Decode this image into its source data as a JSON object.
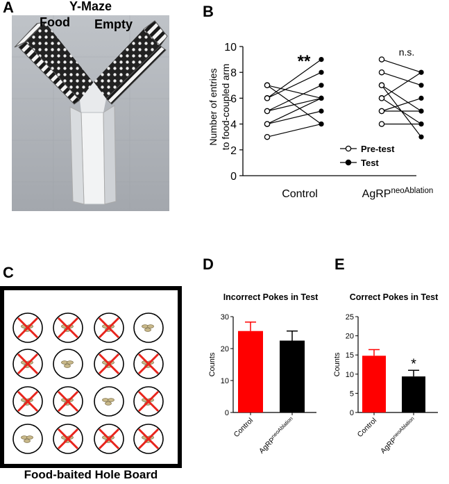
{
  "panels": {
    "A": {
      "letter": "A",
      "title": "Y-Maze",
      "arm_left": "Food",
      "arm_right": "Empty"
    },
    "B": {
      "letter": "B"
    },
    "C": {
      "letter": "C",
      "caption": "Food-baited Hole Board"
    },
    "D": {
      "letter": "D"
    },
    "E": {
      "letter": "E"
    }
  },
  "colors": {
    "control": "#ff0000",
    "agrp": "#000000",
    "cross": "#e8241c",
    "pellet": "#c9b98a"
  },
  "hole_board": {
    "rows": [
      [
        true,
        true,
        true,
        false
      ],
      [
        true,
        false,
        true,
        true
      ],
      [
        true,
        true,
        false,
        true
      ],
      [
        false,
        true,
        true,
        true
      ]
    ]
  },
  "chart_data": [
    {
      "panel": "B",
      "type": "scatter",
      "ylabel": "Number of entries to food-coupled arm",
      "ylim": [
        0,
        10
      ],
      "yticks": [
        0,
        2,
        4,
        6,
        8,
        10
      ],
      "groups": [
        {
          "label": "Control",
          "label_sup": "",
          "significance": "**",
          "pre": [
            3,
            4,
            4,
            5,
            5,
            6,
            6,
            7,
            7
          ],
          "test": [
            4,
            5,
            6,
            6,
            7,
            9,
            8,
            6,
            4
          ]
        },
        {
          "label": "AgRP",
          "label_sup": "neoAblation",
          "significance": "n.s.",
          "pre": [
            4,
            5,
            5,
            6,
            6,
            7,
            7,
            8,
            9
          ],
          "test": [
            4,
            6,
            5,
            8,
            4,
            5,
            3,
            7,
            8
          ]
        }
      ],
      "legend": [
        {
          "label": "Pre-test",
          "marker": "open-circle"
        },
        {
          "label": "Test",
          "marker": "filled-circle"
        }
      ],
      "legend_position": "bottom-right"
    },
    {
      "panel": "D",
      "type": "bar",
      "title": "Incorrect Pokes in Test",
      "ylabel": "Counts",
      "ylim": [
        0,
        30
      ],
      "yticks": [
        0,
        10,
        20,
        30
      ],
      "categories": [
        {
          "label": "Control",
          "sup": "",
          "value": 25.5,
          "error": 2.8,
          "color": "#ff0000"
        },
        {
          "label": "AgRP",
          "sup": "neoAblation",
          "value": 22.5,
          "error": 3.0,
          "color": "#000000"
        }
      ],
      "significance": [
        "",
        ""
      ]
    },
    {
      "panel": "E",
      "type": "bar",
      "title": "Correct Pokes in Test",
      "ylabel": "Counts",
      "ylim": [
        0,
        25
      ],
      "yticks": [
        0,
        5,
        10,
        15,
        20,
        25
      ],
      "categories": [
        {
          "label": "Control",
          "sup": "",
          "value": 14.8,
          "error": 1.6,
          "color": "#ff0000"
        },
        {
          "label": "AgRP",
          "sup": "neoAblation",
          "value": 9.4,
          "error": 1.6,
          "color": "#000000"
        }
      ],
      "significance": [
        "",
        "*"
      ]
    }
  ]
}
